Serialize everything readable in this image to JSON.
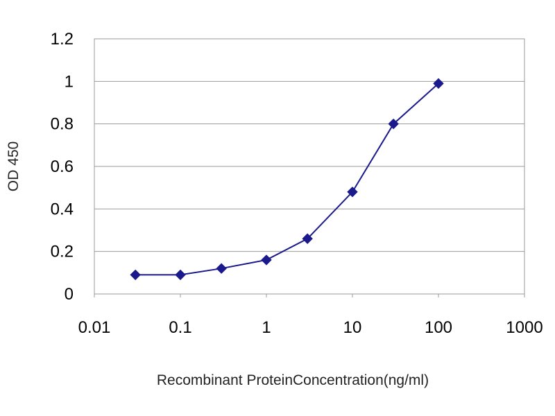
{
  "chart_data": {
    "type": "line",
    "title": "",
    "xlabel": "Recombinant ProteinConcentration(ng/ml)",
    "ylabel": "OD 450",
    "x_scale": "log",
    "xlim": [
      0.01,
      1000
    ],
    "ylim": [
      0,
      1.2
    ],
    "x_ticks": [
      "0.01",
      "0.1",
      "1",
      "10",
      "100",
      "1000"
    ],
    "y_ticks": [
      "0",
      "0.2",
      "0.4",
      "0.6",
      "0.8",
      "1",
      "1.2"
    ],
    "grid": "horizontal",
    "legend": "none",
    "series": [
      {
        "color": "#1a1a8c",
        "marker": "diamond",
        "x": [
          0.03,
          0.1,
          0.3,
          1,
          3,
          10,
          30,
          100
        ],
        "y": [
          0.09,
          0.09,
          0.12,
          0.16,
          0.26,
          0.48,
          0.8,
          0.99
        ]
      }
    ]
  }
}
